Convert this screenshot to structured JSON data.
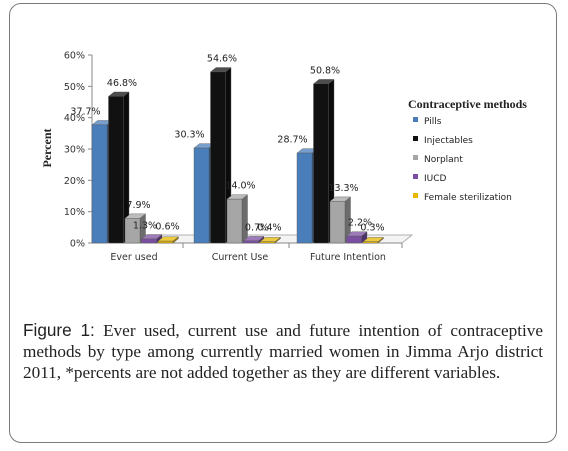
{
  "chart_data": {
    "type": "bar",
    "ylabel": "Percent",
    "ylim": [
      0,
      60
    ],
    "yticks": [
      "0%",
      "10%",
      "20%",
      "30%",
      "40%",
      "50%",
      "60%"
    ],
    "categories": [
      "Ever used",
      "Current Use",
      "Future Intention"
    ],
    "legend_title": "Contraceptive methods",
    "legend_position": "right",
    "grid": false,
    "series": [
      {
        "name": "Pills",
        "color": "#4a7ebb",
        "values": [
          37.7,
          30.3,
          28.7
        ],
        "labels": [
          "37.7%",
          "30.3%",
          "28.7%"
        ]
      },
      {
        "name": "Injectables",
        "color": "#111111",
        "values": [
          46.8,
          54.6,
          50.8
        ],
        "labels": [
          "46.8%",
          "54.6%",
          "50.8%"
        ]
      },
      {
        "name": "Norplant",
        "color": "#a6a6a6",
        "values": [
          7.9,
          14.0,
          13.3
        ],
        "labels": [
          "7.9%",
          "14.0%",
          "13.3%"
        ]
      },
      {
        "name": "IUCD",
        "color": "#7b4fa0",
        "values": [
          1.3,
          0.7,
          2.2
        ],
        "labels": [
          "1.3%",
          "0.7%",
          "2.2%"
        ]
      },
      {
        "name": "Female sterilization",
        "color": "#e8b800",
        "values": [
          0.6,
          0.4,
          0.3
        ],
        "labels": [
          "0.6%",
          "0.4%",
          "0.3%"
        ]
      }
    ]
  },
  "caption": {
    "label": "Figure 1:",
    "text": " Ever used, current use and future intention of contraceptive methods by type among currently married women in Jimma Arjo district 2011, *percents are not added together as they are different variables."
  }
}
